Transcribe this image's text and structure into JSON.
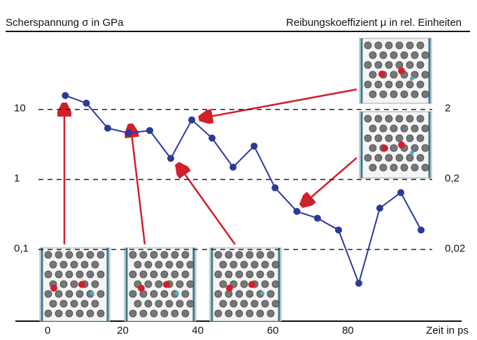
{
  "chart_data": {
    "type": "line",
    "y_label": "Scherspannung σ in GPa",
    "y2_label": "Reibungskoeffizient μ in rel. Einheiten",
    "x_label": "Zeit in ps",
    "x": [
      4.7,
      10.3,
      16.0,
      21.6,
      27.2,
      32.8,
      38.4,
      43.8,
      49.4,
      55.0,
      60.6,
      66.4,
      71.9,
      77.5,
      82.9,
      88.5,
      94.1,
      99.5
    ],
    "series": [
      {
        "color": "#2b3a9a",
        "values": [
          15.8,
          12.3,
          5.4,
          4.6,
          5.0,
          2.0,
          7.1,
          3.9,
          1.5,
          3.0,
          0.76,
          0.35,
          0.28,
          0.19,
          0.033,
          0.39,
          0.65,
          0.19
        ]
      }
    ],
    "xlim": [
      -8.6,
      110.3
    ],
    "xticks": [
      0,
      20,
      40,
      60,
      80
    ],
    "ylim": [
      0.0095,
      130
    ],
    "log_y": true,
    "yticks": [
      {
        "value": 0.1,
        "label": "0,1"
      },
      1,
      10
    ],
    "y2lim": [
      0.0019,
      26
    ],
    "y2ticks": [
      {
        "value": 0.02,
        "label": "0,02"
      },
      {
        "value": 0.2,
        "label": "0,2"
      },
      2
    ],
    "grid": true
  }
}
